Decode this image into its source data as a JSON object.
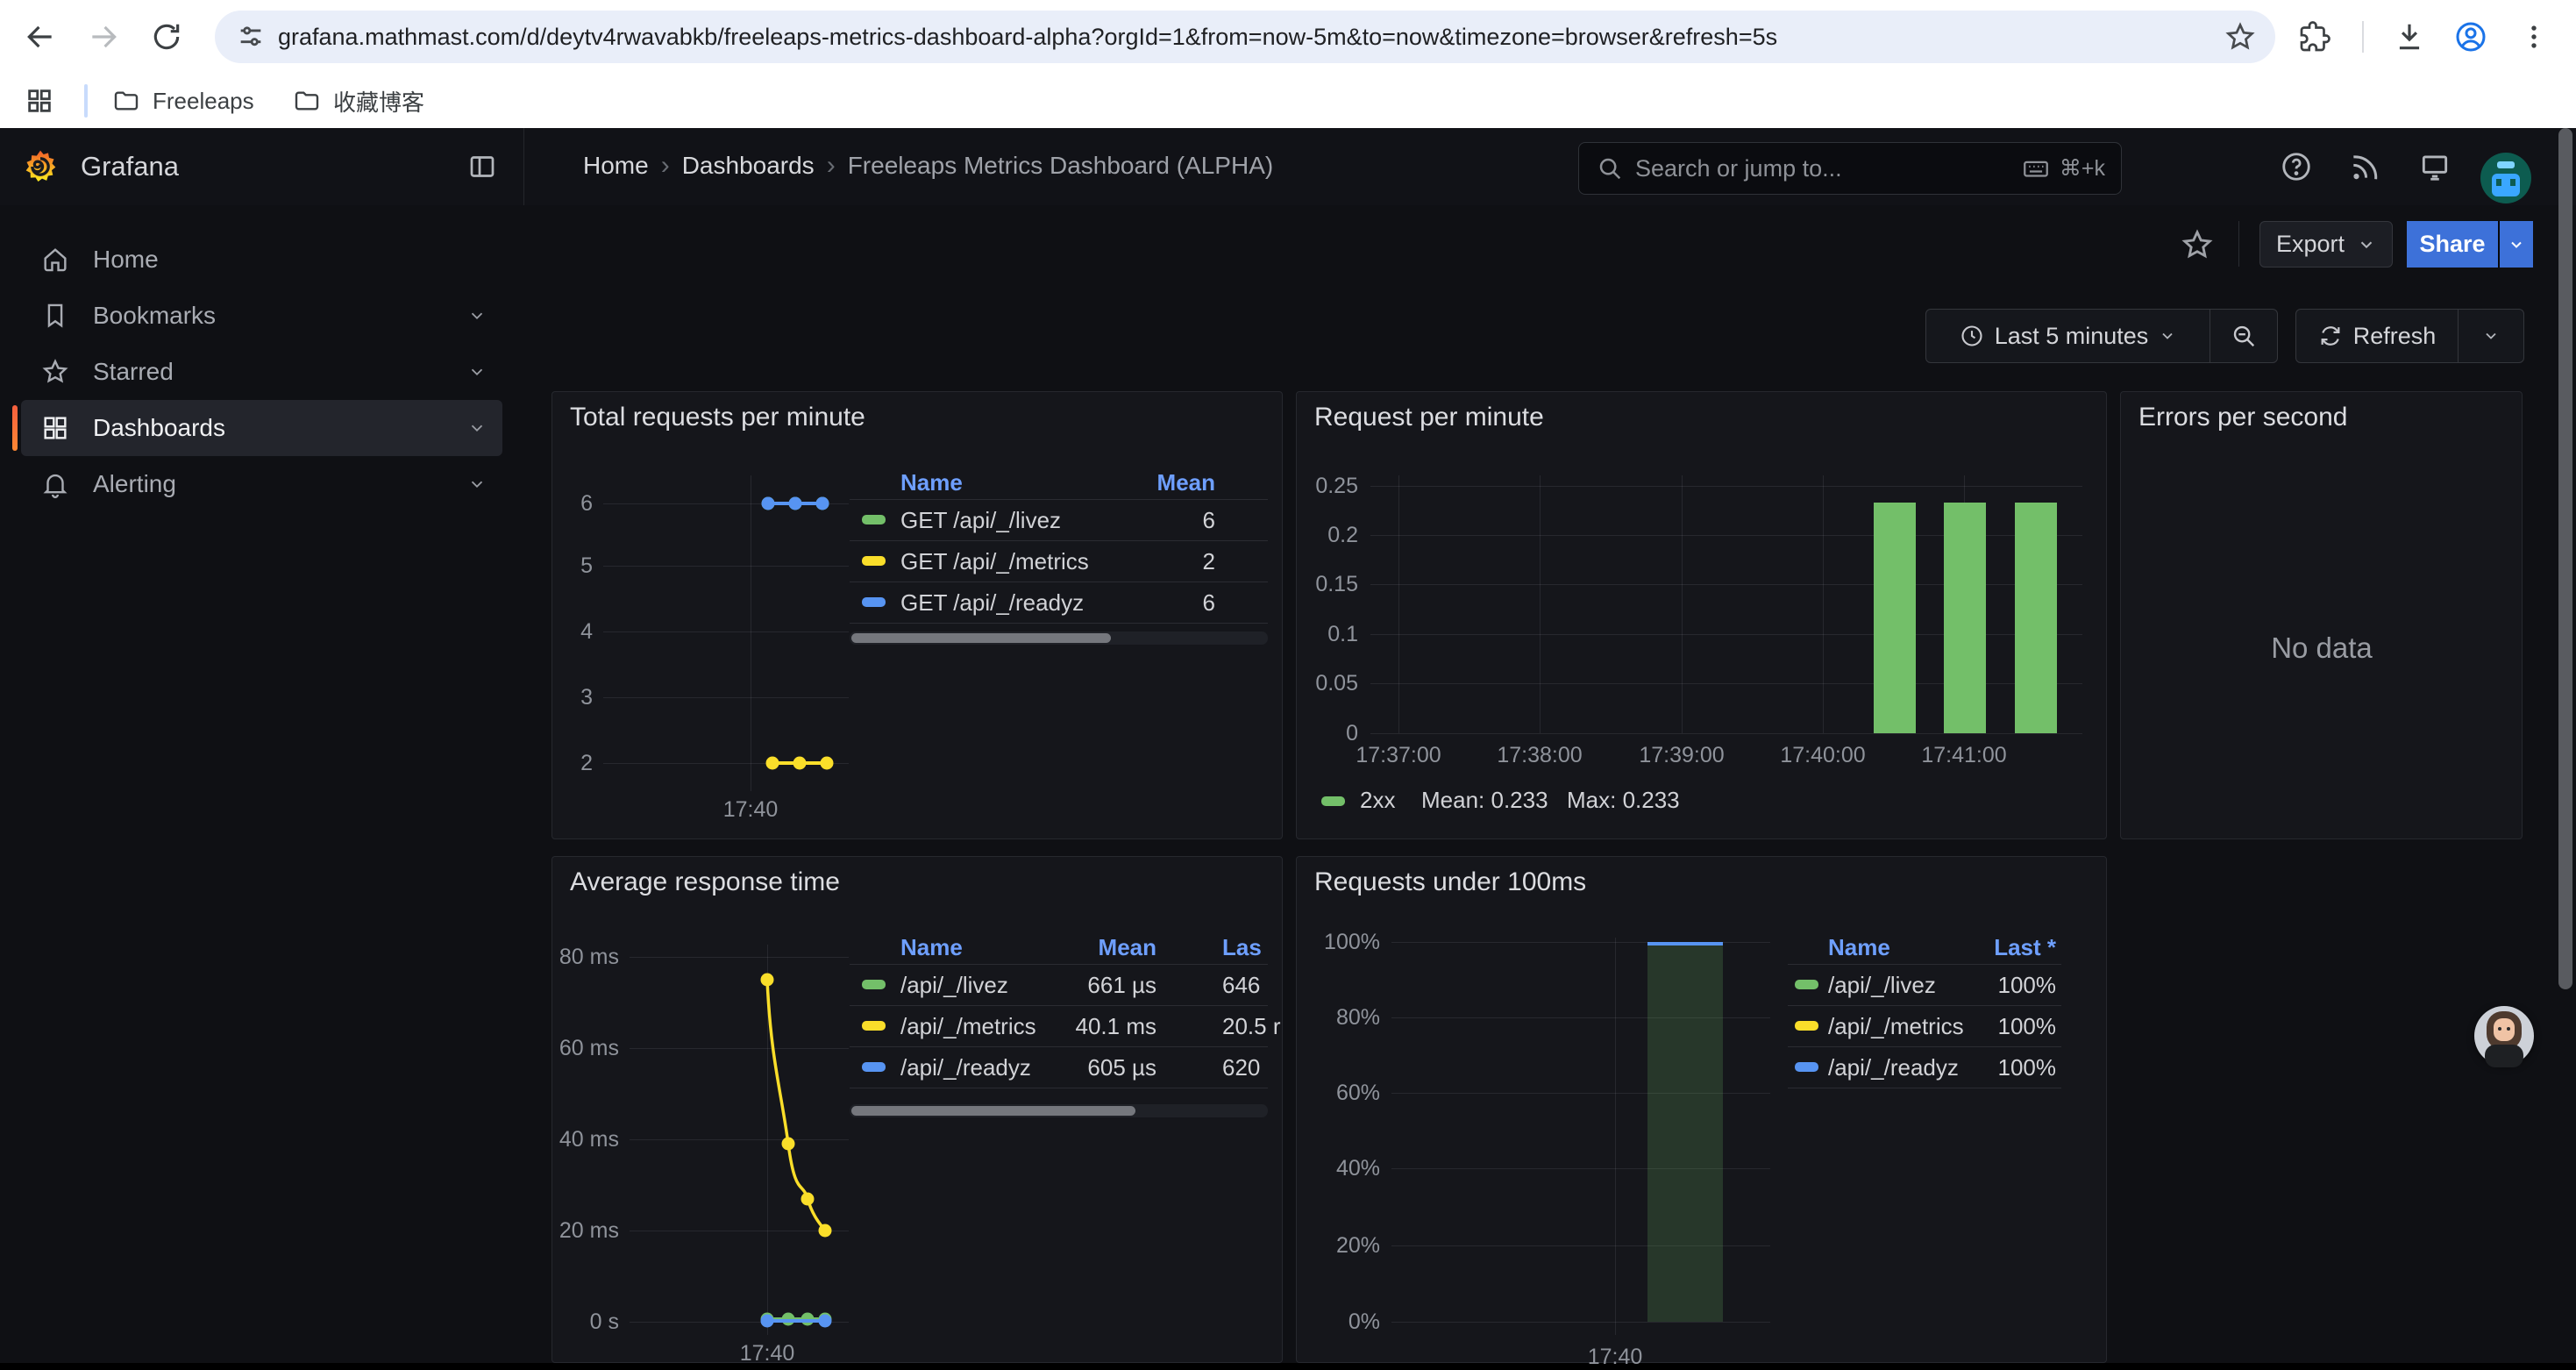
{
  "colors": {
    "green": "#73BF69",
    "yellow": "#FADE2A",
    "blue": "#5794F2",
    "link_blue": "#6E9FFF",
    "share_blue": "#3D71D9",
    "active_accent_top": "#F55F3E",
    "active_accent_bottom": "#FF8833"
  },
  "browser": {
    "url": "grafana.mathmast.com/d/deytv4rwavabkb/freeleaps-metrics-dashboard-alpha?orgId=1&from=now-5m&to=now&timezone=browser&refresh=5s",
    "bookmarks": [
      {
        "label": "Freeleaps"
      },
      {
        "label": "收藏博客"
      }
    ]
  },
  "nav": {
    "brand": "Grafana",
    "breadcrumb": [
      "Home",
      "Dashboards",
      "Freeleaps Metrics Dashboard (ALPHA)"
    ],
    "search_placeholder": "Search or jump to...",
    "search_shortcut": "⌘+k",
    "export_label": "Export",
    "share_label": "Share",
    "time_range_label": "Last 5 minutes",
    "refresh_label": "Refresh"
  },
  "sidebar": {
    "items": [
      {
        "label": "Home",
        "icon": "home-icon",
        "expandable": false,
        "active": false
      },
      {
        "label": "Bookmarks",
        "icon": "bookmark-icon",
        "expandable": true,
        "active": false
      },
      {
        "label": "Starred",
        "icon": "star-icon",
        "expandable": true,
        "active": false
      },
      {
        "label": "Dashboards",
        "icon": "dashboards-grid-icon",
        "expandable": true,
        "active": true
      },
      {
        "label": "Alerting",
        "icon": "bell-icon",
        "expandable": true,
        "active": false
      }
    ]
  },
  "panels": [
    {
      "title": "Total requests per minute",
      "chart_data": {
        "type": "line",
        "yticks": [
          "6",
          "5",
          "4",
          "3",
          "2"
        ],
        "ylim": [
          1.5,
          6.5
        ],
        "xticks": [
          "17:40"
        ],
        "series": [
          {
            "name": "GET /api/_/livez",
            "color": "green",
            "values": [
              6,
              6,
              6
            ]
          },
          {
            "name": "GET /api/_/metrics",
            "color": "yellow",
            "values": [
              2,
              2,
              2
            ]
          },
          {
            "name": "GET /api/_/readyz",
            "color": "blue",
            "values": [
              6,
              6,
              6
            ]
          }
        ],
        "legend_position": "right-table"
      },
      "legend": {
        "headers": [
          "Name",
          "Mean"
        ],
        "rows": [
          {
            "name": "GET /api/_/livez",
            "color": "green",
            "mean": "6"
          },
          {
            "name": "GET /api/_/metrics",
            "color": "yellow",
            "mean": "2"
          },
          {
            "name": "GET /api/_/readyz",
            "color": "blue",
            "mean": "6"
          }
        ]
      }
    },
    {
      "title": "Request per minute",
      "chart_data": {
        "type": "bar",
        "yticks": [
          "0.25",
          "0.2",
          "0.15",
          "0.1",
          "0.05",
          "0"
        ],
        "ylim": [
          0,
          0.25
        ],
        "xticks": [
          "17:37:00",
          "17:38:00",
          "17:39:00",
          "17:40:00",
          "17:41:00"
        ],
        "series": [
          {
            "name": "2xx",
            "color": "green",
            "values": [
              0.233,
              0.233,
              0.233
            ],
            "mean": 0.233,
            "max": 0.233
          }
        ],
        "legend_position": "bottom"
      },
      "legend_bottom": {
        "name": "2xx",
        "mean_label": "Mean: 0.233",
        "max_label": "Max: 0.233"
      }
    },
    {
      "title": "Errors per second",
      "no_data_label": "No data",
      "chart_data": {
        "type": "line",
        "series": [],
        "note": "no data"
      }
    },
    {
      "title": "Average response time",
      "chart_data": {
        "type": "line",
        "yticks": [
          "80 ms",
          "60 ms",
          "40 ms",
          "20 ms",
          "0 s"
        ],
        "ylim_ms": [
          0,
          80
        ],
        "xticks": [
          "17:40"
        ],
        "series": [
          {
            "name": "/api/_/livez",
            "color": "green",
            "values_ms": [
              0.66,
              0.66,
              0.65,
              0.65
            ]
          },
          {
            "name": "/api/_/metrics",
            "color": "yellow",
            "values_ms": [
              75,
              39,
              27,
              20
            ]
          },
          {
            "name": "/api/_/readyz",
            "color": "blue",
            "values_ms": [
              0.6,
              0.6,
              0.62,
              0.62
            ]
          }
        ],
        "legend_position": "right-table"
      },
      "legend": {
        "headers": [
          "Name",
          "Mean",
          "Las"
        ],
        "rows": [
          {
            "name": "/api/_/livez",
            "color": "green",
            "mean": "661 µs",
            "last": "646"
          },
          {
            "name": "/api/_/metrics",
            "color": "yellow",
            "mean": "40.1 ms",
            "last": "20.5 r"
          },
          {
            "name": "/api/_/readyz",
            "color": "blue",
            "mean": "605 µs",
            "last": "620"
          }
        ]
      }
    },
    {
      "title": "Requests under 100ms",
      "chart_data": {
        "type": "area",
        "yticks": [
          "100%",
          "80%",
          "60%",
          "40%",
          "20%",
          "0%"
        ],
        "ylim_pct": [
          0,
          100
        ],
        "xticks": [
          "17:40"
        ],
        "series": [
          {
            "name": "/api/_/livez",
            "color": "green",
            "last_pct": 100
          },
          {
            "name": "/api/_/metrics",
            "color": "yellow",
            "last_pct": 100
          },
          {
            "name": "/api/_/readyz",
            "color": "blue",
            "last_pct": 100
          }
        ],
        "legend_position": "right-table"
      },
      "legend": {
        "headers": [
          "Name",
          "Last *"
        ],
        "rows": [
          {
            "name": "/api/_/livez",
            "color": "green",
            "last": "100%"
          },
          {
            "name": "/api/_/metrics",
            "color": "yellow",
            "last": "100%"
          },
          {
            "name": "/api/_/readyz",
            "color": "blue",
            "last": "100%"
          }
        ]
      }
    }
  ]
}
